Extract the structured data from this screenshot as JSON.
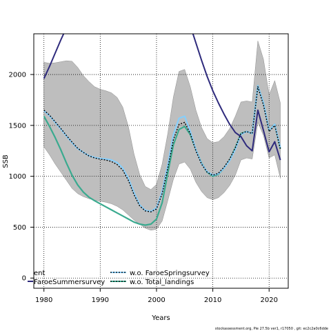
{
  "chart_data": {
    "type": "line",
    "xlabel": "Years",
    "ylabel": "SSB",
    "xlim": [
      1978.2,
      2023.4
    ],
    "ylim": [
      -100,
      2400
    ],
    "x_ticks": [
      1980,
      1990,
      2000,
      2010,
      2020
    ],
    "y_ticks": [
      0,
      500,
      1000,
      1500,
      2000
    ],
    "grid": "dotted",
    "legend_position": "bottom-left",
    "colors": {
      "band": "#bebebe",
      "base": "#000000",
      "faroe_spring": "#87cefa",
      "faroe_summer": "#2e2a7c",
      "total_landings": "#3aaa8f"
    },
    "band": {
      "x": [
        1980,
        1981,
        1982,
        1983,
        1984,
        1985,
        1986,
        1987,
        1988,
        1989,
        1990,
        1991,
        1992,
        1993,
        1994,
        1995,
        1996,
        1997,
        1998,
        1999,
        2000,
        2001,
        2002,
        2003,
        2004,
        2005,
        2006,
        2007,
        2008,
        2009,
        2010,
        2011,
        2012,
        2013,
        2014,
        2015,
        2016,
        2017,
        2018,
        2019,
        2020,
        2021,
        2022
      ],
      "upper": [
        2120,
        2110,
        2115,
        2125,
        2135,
        2130,
        2070,
        1990,
        1930,
        1880,
        1855,
        1840,
        1820,
        1775,
        1680,
        1490,
        1220,
        1020,
        900,
        870,
        920,
        1120,
        1420,
        1780,
        2030,
        2050,
        1880,
        1650,
        1480,
        1370,
        1330,
        1340,
        1390,
        1470,
        1590,
        1730,
        1740,
        1730,
        2330,
        2150,
        1800,
        1940,
        1720
      ],
      "lower": [
        1290,
        1210,
        1120,
        1040,
        960,
        880,
        830,
        800,
        780,
        765,
        755,
        745,
        730,
        705,
        670,
        620,
        570,
        530,
        490,
        470,
        480,
        560,
        760,
        970,
        1120,
        1140,
        1070,
        940,
        850,
        790,
        770,
        790,
        840,
        910,
        1010,
        1160,
        1180,
        1170,
        1530,
        1400,
        1180,
        1210,
        980
      ]
    },
    "series": [
      {
        "key": "base",
        "x": [
          1980,
          1981,
          1982,
          1983,
          1984,
          1985,
          1986,
          1987,
          1988,
          1989,
          1990,
          1991,
          1992,
          1993,
          1994,
          1995,
          1996,
          1997,
          1998,
          1999,
          2000,
          2001,
          2002,
          2003,
          2004,
          2005,
          2006,
          2007,
          2008,
          2009,
          2010,
          2011,
          2012,
          2013,
          2014,
          2015,
          2016,
          2017,
          2018,
          2019,
          2020,
          2021,
          2022
        ],
        "values": [
          1650,
          1600,
          1535,
          1470,
          1400,
          1335,
          1275,
          1235,
          1200,
          1180,
          1168,
          1160,
          1145,
          1115,
          1060,
          960,
          820,
          710,
          660,
          650,
          680,
          830,
          1080,
          1360,
          1510,
          1530,
          1420,
          1250,
          1120,
          1040,
          1010,
          1030,
          1090,
          1170,
          1280,
          1420,
          1440,
          1420,
          1880,
          1700,
          1440,
          1500,
          1270
        ]
      },
      {
        "key": "faroe_spring",
        "name": "w.o. FaroeSpringsurvey",
        "x": [
          1980,
          1981,
          1982,
          1983,
          1984,
          1985,
          1986,
          1987,
          1988,
          1989,
          1990,
          1991,
          1992,
          1993,
          1994,
          1995,
          1996,
          1997,
          1998,
          1999,
          2000,
          2001,
          2002,
          2003,
          2004,
          2005,
          2006,
          2007,
          2008,
          2009,
          2010,
          2011,
          2012,
          2013,
          2014,
          2015,
          2016,
          2017,
          2018,
          2019,
          2020,
          2021,
          2022
        ],
        "values": [
          1645,
          1595,
          1530,
          1465,
          1395,
          1330,
          1272,
          1235,
          1202,
          1185,
          1175,
          1170,
          1160,
          1135,
          1080,
          980,
          840,
          720,
          665,
          655,
          690,
          850,
          1110,
          1410,
          1570,
          1590,
          1440,
          1260,
          1125,
          1045,
          1012,
          1025,
          1080,
          1155,
          1265,
          1410,
          1440,
          1420,
          1890,
          1720,
          1450,
          1510,
          1280
        ]
      },
      {
        "key": "faroe_summer",
        "name": "FaroeSummersurvey",
        "x": [
          1980,
          1981,
          1982,
          1983,
          1984,
          2006,
          2007,
          2008,
          2009,
          2010,
          2011,
          2012,
          2013,
          2014,
          2015,
          2016,
          2017,
          2018,
          2019,
          2020,
          2021,
          2022
        ],
        "values": [
          1960,
          2080,
          2210,
          2340,
          2460,
          2480,
          2310,
          2140,
          1980,
          1840,
          1720,
          1610,
          1510,
          1430,
          1390,
          1300,
          1250,
          1650,
          1450,
          1240,
          1340,
          1160
        ]
      },
      {
        "key": "total_landings",
        "name": "w.o. Total_landings",
        "x": [
          1980,
          1981,
          1982,
          1983,
          1984,
          1985,
          1986,
          1987,
          1988,
          1989,
          1990,
          1991,
          1992,
          1993,
          1994,
          1995,
          1996,
          1997,
          1998,
          1999,
          2000,
          2001,
          2002,
          2003,
          2004,
          2005,
          2006,
          2007,
          2008,
          2009,
          2010,
          2011,
          2012,
          2013,
          2014,
          2015,
          2016,
          2017,
          2018,
          2019,
          2020,
          2021,
          2022
        ],
        "values": [
          1590,
          1490,
          1380,
          1260,
          1130,
          1010,
          915,
          845,
          795,
          760,
          730,
          700,
          670,
          640,
          610,
          580,
          550,
          530,
          520,
          530,
          580,
          740,
          1030,
          1310,
          1460,
          1490,
          1410,
          1260,
          1130,
          1040,
          1000,
          1020,
          1080,
          1160,
          1280,
          1420,
          1440,
          1420,
          1890,
          1720,
          1450,
          1510,
          1270
        ]
      }
    ],
    "legend": {
      "col1": [
        "ent",
        "FaroeSummersurvey"
      ],
      "col2": [
        "w.o. FaroeSpringsurvey",
        "w.o. Total_landings"
      ]
    }
  },
  "footer": "stockassessment.org, Pie 27.5b ver1, r17050 , git: ec2c2a0c6dde"
}
